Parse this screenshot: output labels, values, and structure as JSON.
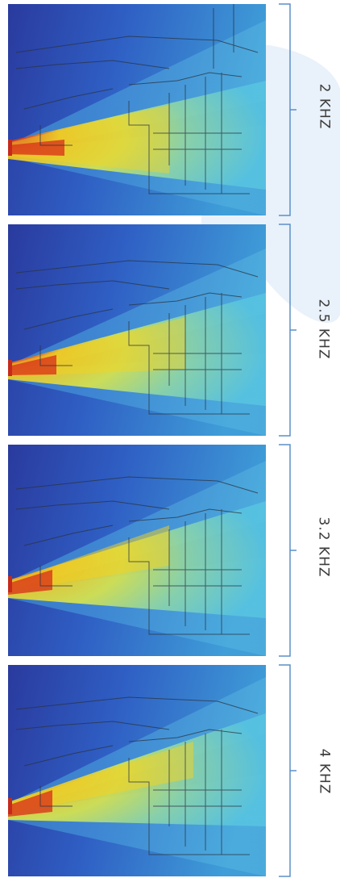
{
  "colors": {
    "background": "#ffffff",
    "shape": "#e9f1fa",
    "bracket": "#5b8fc7",
    "label": "#3b3b3b",
    "outline": "#2a3340",
    "source_marker": "#c62a1a"
  },
  "colormap": "jet",
  "panels": [
    {
      "frequency_label": "2 KHZ"
    },
    {
      "frequency_label": "2.5 KHZ"
    },
    {
      "frequency_label": "3.2 KHZ"
    },
    {
      "frequency_label": "4 KHZ"
    }
  ]
}
